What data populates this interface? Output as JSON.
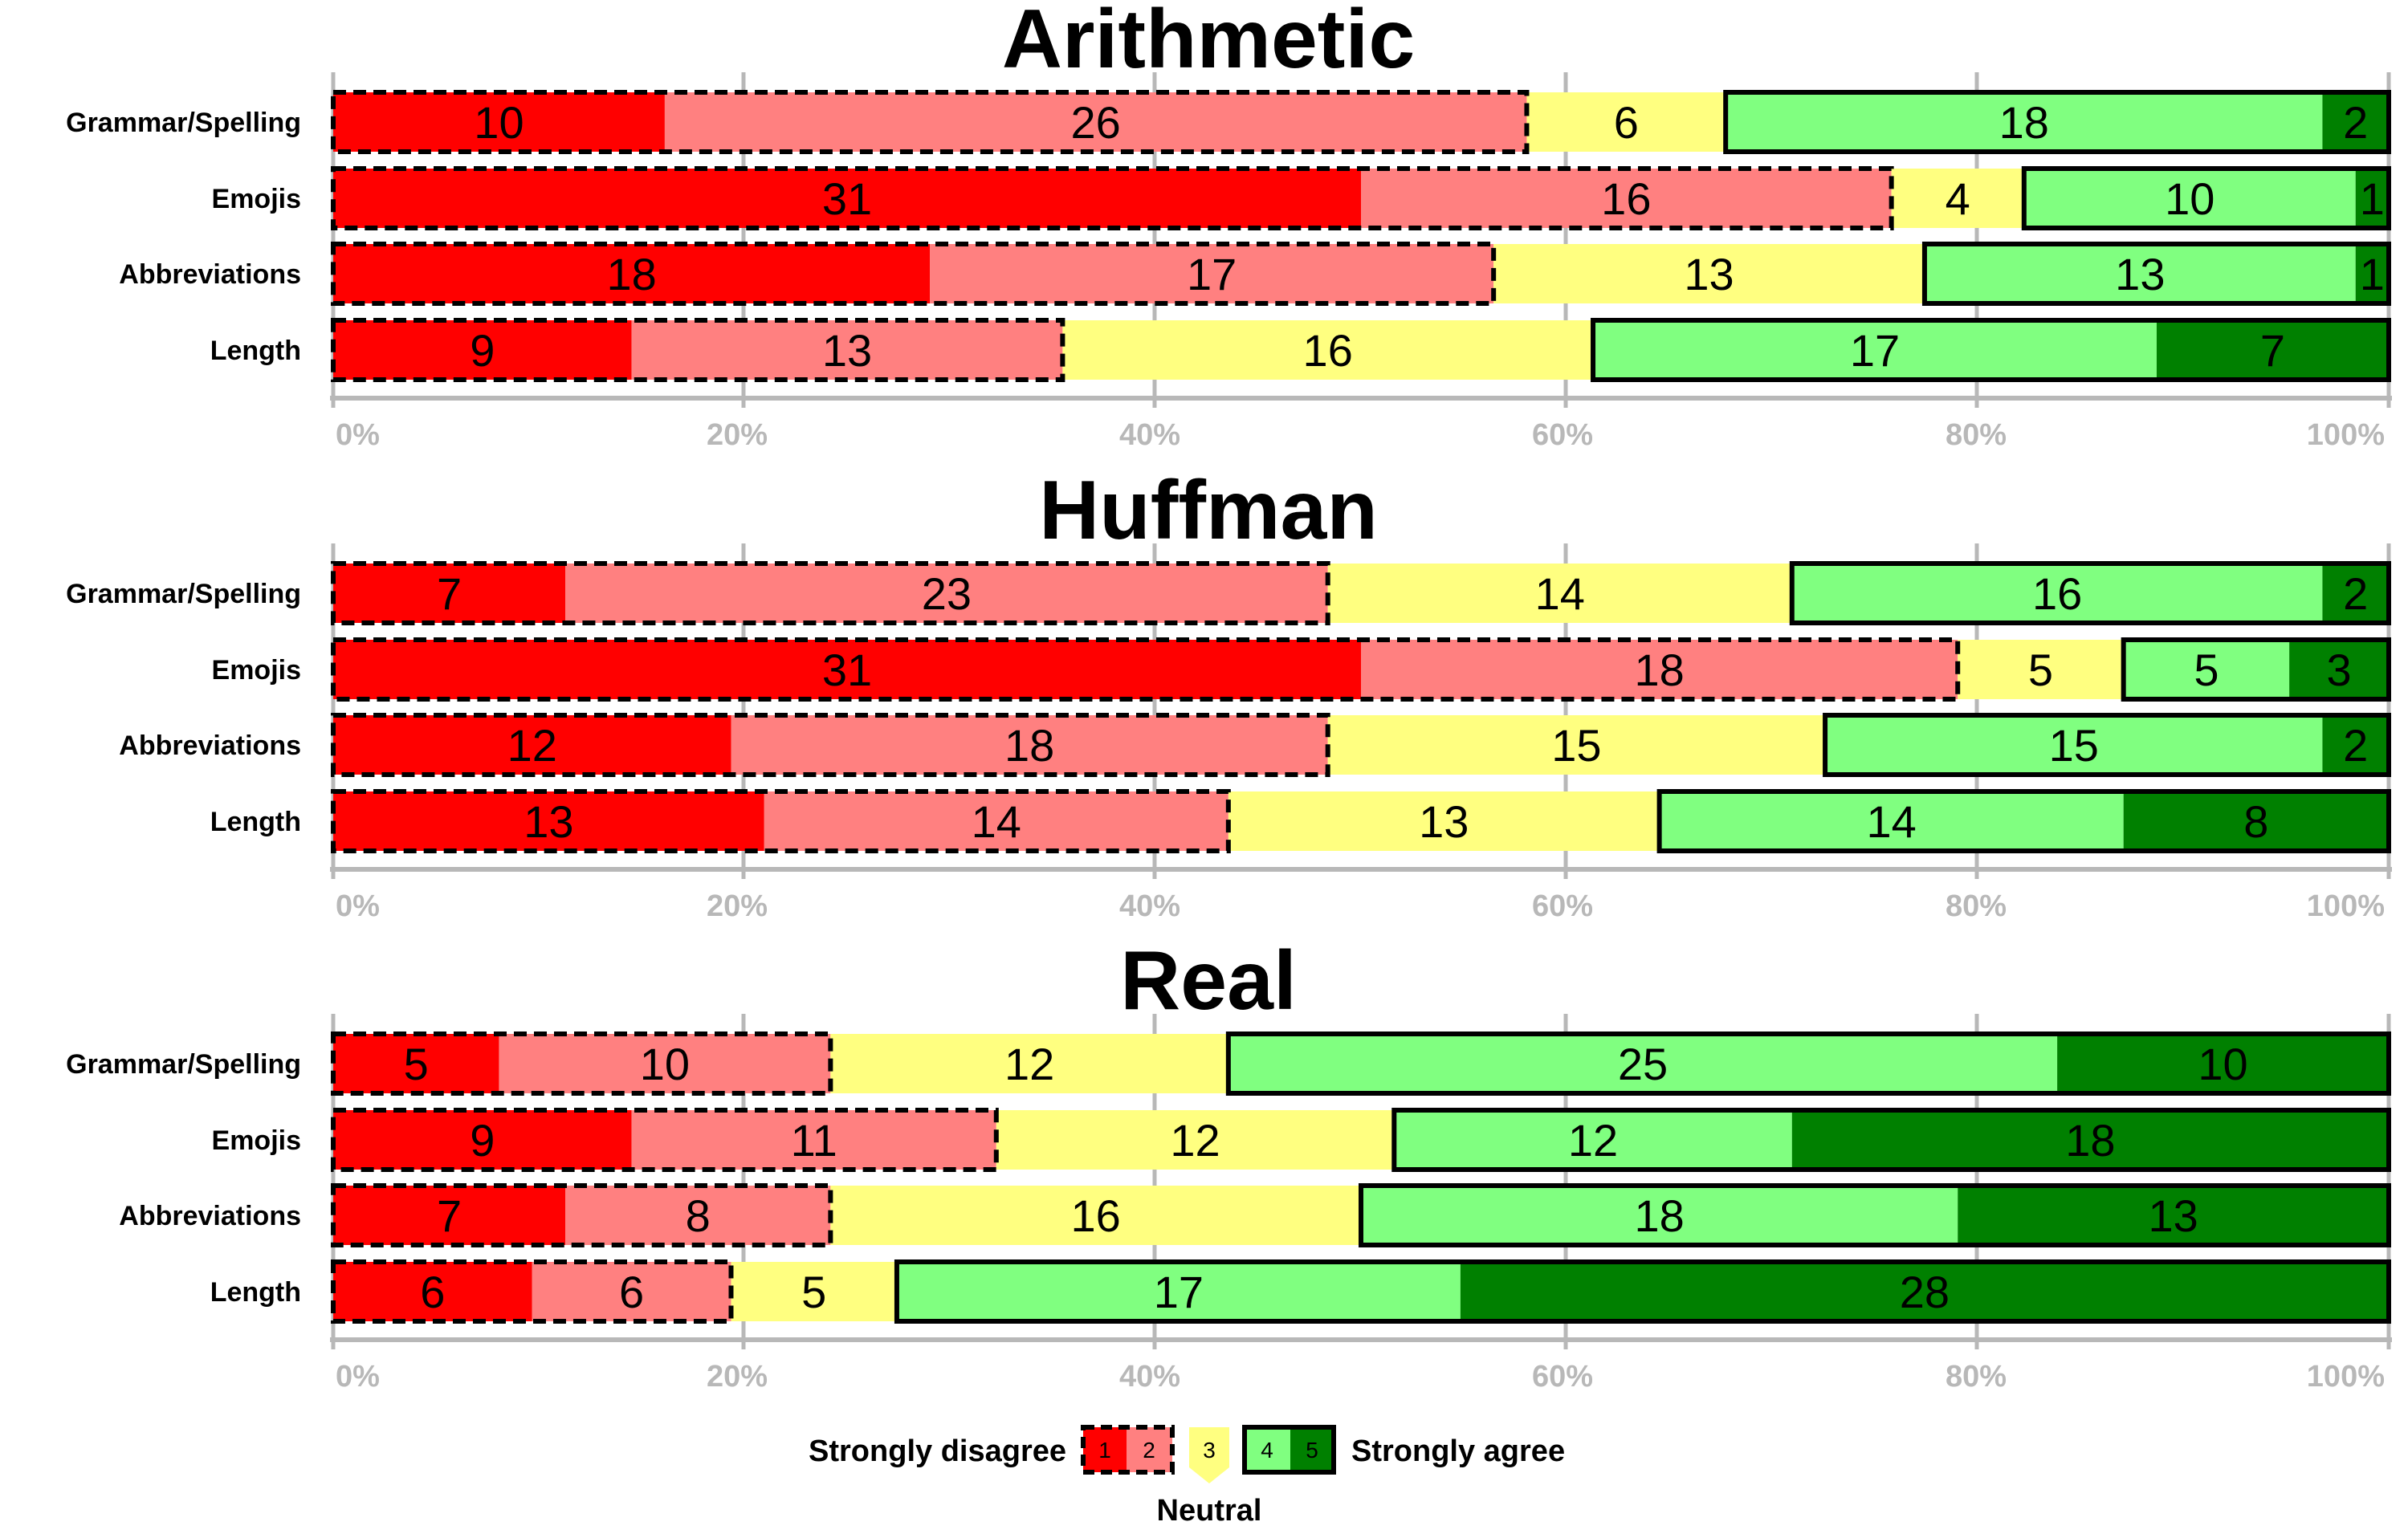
{
  "chart_data": [
    {
      "type": "bar",
      "orientation": "horizontal-stacked-100",
      "title": "Arithmetic",
      "categories": [
        "Grammar/Spelling",
        "Emojis",
        "Abbreviations",
        "Length"
      ],
      "series": [
        {
          "name": "1",
          "values": [
            10,
            31,
            18,
            9
          ]
        },
        {
          "name": "2",
          "values": [
            26,
            16,
            17,
            13
          ]
        },
        {
          "name": "3",
          "values": [
            6,
            4,
            13,
            16
          ]
        },
        {
          "name": "4",
          "values": [
            18,
            10,
            13,
            17
          ]
        },
        {
          "name": "5",
          "values": [
            2,
            1,
            1,
            7
          ]
        }
      ],
      "x_ticks": [
        "0%",
        "20%",
        "40%",
        "60%",
        "80%",
        "100%"
      ]
    },
    {
      "type": "bar",
      "orientation": "horizontal-stacked-100",
      "title": "Huffman",
      "categories": [
        "Grammar/Spelling",
        "Emojis",
        "Abbreviations",
        "Length"
      ],
      "series": [
        {
          "name": "1",
          "values": [
            7,
            31,
            12,
            13
          ]
        },
        {
          "name": "2",
          "values": [
            23,
            18,
            18,
            14
          ]
        },
        {
          "name": "3",
          "values": [
            14,
            5,
            15,
            13
          ]
        },
        {
          "name": "4",
          "values": [
            16,
            5,
            15,
            14
          ]
        },
        {
          "name": "5",
          "values": [
            2,
            3,
            2,
            8
          ]
        }
      ],
      "x_ticks": [
        "0%",
        "20%",
        "40%",
        "60%",
        "80%",
        "100%"
      ]
    },
    {
      "type": "bar",
      "orientation": "horizontal-stacked-100",
      "title": "Real",
      "categories": [
        "Grammar/Spelling",
        "Emojis",
        "Abbreviations",
        "Length"
      ],
      "series": [
        {
          "name": "1",
          "values": [
            5,
            9,
            7,
            6
          ]
        },
        {
          "name": "2",
          "values": [
            10,
            11,
            8,
            6
          ]
        },
        {
          "name": "3",
          "values": [
            12,
            12,
            16,
            5
          ]
        },
        {
          "name": "4",
          "values": [
            25,
            12,
            18,
            17
          ]
        },
        {
          "name": "5",
          "values": [
            10,
            18,
            13,
            28
          ]
        }
      ],
      "x_ticks": [
        "0%",
        "20%",
        "40%",
        "60%",
        "80%",
        "100%"
      ]
    }
  ],
  "legend": {
    "left_label": "Strongly disagree",
    "right_label": "Strongly agree",
    "neutral_label": "Neutral",
    "items": [
      "1",
      "2",
      "3",
      "4",
      "5"
    ]
  },
  "colors": {
    "1": "#ff0000",
    "2": "#ff8080",
    "3": "#ffff80",
    "4": "#80ff80",
    "5": "#008000",
    "axis": "#b8b8b8"
  }
}
